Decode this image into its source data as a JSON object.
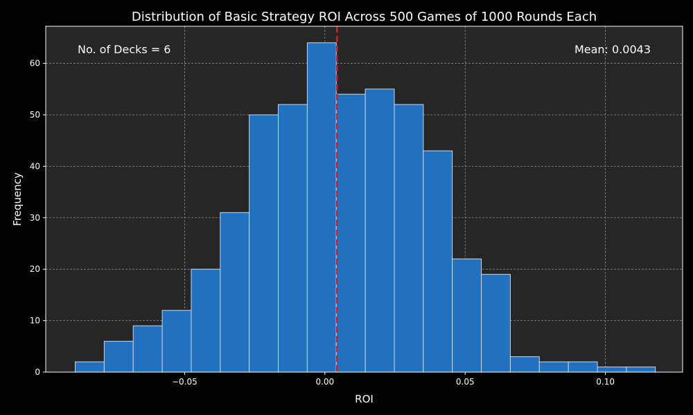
{
  "chart_data": {
    "type": "bar",
    "title": "Distribution of Basic Strategy ROI Across 500 Games of 1000 Rounds Each",
    "xlabel": "ROI",
    "ylabel": "Frequency",
    "xlim": [
      -0.0995,
      0.1275
    ],
    "ylim": [
      0,
      67.2
    ],
    "bin_edges": [
      -0.089,
      -0.07866,
      -0.06832,
      -0.05798,
      -0.04764,
      -0.0373,
      -0.02696,
      -0.01662,
      -0.00628,
      0.00406,
      0.0144,
      0.02474,
      0.03508,
      0.04542,
      0.05576,
      0.0661,
      0.07644,
      0.08678,
      0.09712,
      0.10746,
      0.1178
    ],
    "values": [
      2,
      6,
      9,
      12,
      20,
      31,
      50,
      52,
      64,
      54,
      55,
      52,
      43,
      22,
      19,
      3,
      2,
      2,
      1,
      1
    ],
    "x_ticks": [
      -0.05,
      0.0,
      0.05,
      0.1
    ],
    "x_tick_labels": [
      "−0.05",
      "0.00",
      "0.05",
      "0.10"
    ],
    "y_ticks": [
      0,
      10,
      20,
      30,
      40,
      50,
      60
    ],
    "y_tick_labels": [
      "0",
      "10",
      "20",
      "30",
      "40",
      "50",
      "60"
    ],
    "mean_value": 0.0043,
    "grid": true,
    "colors": {
      "bar_fill": "#2171bf",
      "bar_edge": "#c8d8ec",
      "mean_line": "#e8161a",
      "plot_bg": "#262626",
      "figure_bg": "#000000",
      "grid": "#8a8a8a",
      "text": "#ffffff"
    }
  },
  "annotations": {
    "decks": "No. of Decks = 6",
    "mean": "Mean: 0.0043"
  }
}
